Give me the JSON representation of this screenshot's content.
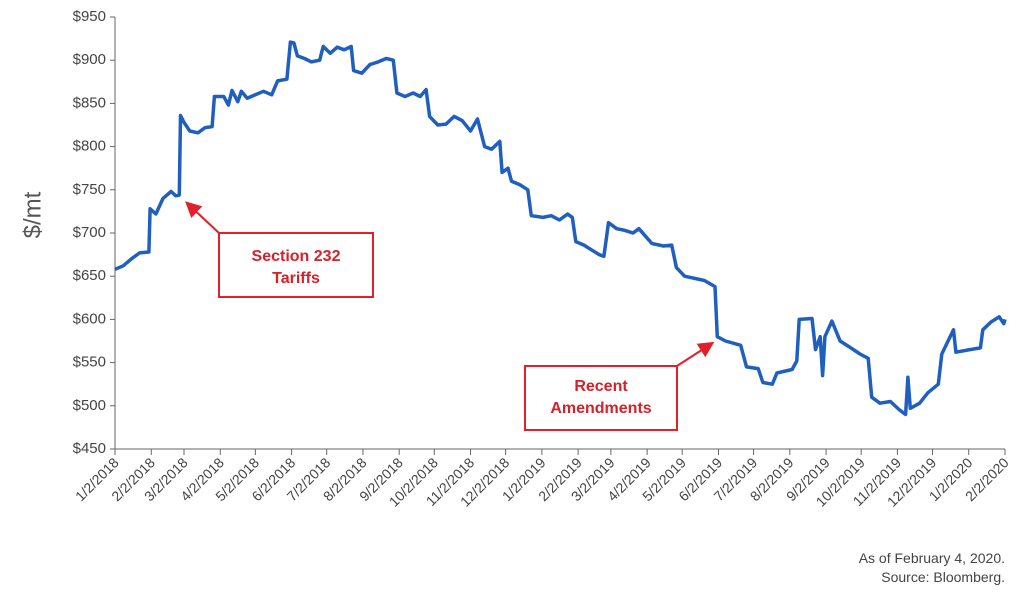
{
  "chart_data": {
    "type": "line",
    "y_label": "$/mt",
    "xlim": [
      "1/2/2018",
      "2/2/2020"
    ],
    "xticks": [
      "1/2/2018",
      "2/2/2018",
      "3/2/2018",
      "4/2/2018",
      "5/2/2018",
      "6/2/2018",
      "7/2/2018",
      "8/2/2018",
      "9/2/2018",
      "10/2/2018",
      "11/2/2018",
      "12/2/2018",
      "1/2/2019",
      "2/2/2019",
      "3/2/2019",
      "4/2/2019",
      "5/2/2019",
      "6/2/2019",
      "7/2/2019",
      "8/2/2019",
      "9/2/2019",
      "10/2/2019",
      "11/2/2019",
      "12/2/2019",
      "1/2/2020",
      "2/2/2020"
    ],
    "ylim": [
      450,
      950
    ],
    "yticks": [
      {
        "value": 450,
        "label": "$450"
      },
      {
        "value": 500,
        "label": "$500"
      },
      {
        "value": 550,
        "label": "$550"
      },
      {
        "value": 600,
        "label": "$600"
      },
      {
        "value": 650,
        "label": "$650"
      },
      {
        "value": 700,
        "label": "$700"
      },
      {
        "value": 750,
        "label": "$750"
      },
      {
        "value": 800,
        "label": "$800"
      },
      {
        "value": 850,
        "label": "$850"
      },
      {
        "value": 900,
        "label": "$900"
      },
      {
        "value": 950,
        "label": "$950"
      }
    ],
    "x": [
      "1/2/2018",
      "1/9/2018",
      "1/16/2018",
      "1/23/2018",
      "1/31/2018",
      "2/1/2018",
      "2/6/2018",
      "2/12/2018",
      "2/19/2018",
      "2/23/2018",
      "2/26/2018",
      "2/27/2018",
      "3/2/2018",
      "3/7/2018",
      "3/14/2018",
      "3/20/2018",
      "3/26/2018",
      "3/28/2018",
      "4/5/2018",
      "4/9/2018",
      "4/12/2018",
      "4/17/2018",
      "4/20/2018",
      "4/25/2018",
      "5/2/2018",
      "5/9/2018",
      "5/16/2018",
      "5/21/2018",
      "5/29/2018",
      "6/1/2018",
      "6/4/2018",
      "6/7/2018",
      "6/13/2018",
      "6/19/2018",
      "6/26/2018",
      "6/29/2018",
      "7/5/2018",
      "7/11/2018",
      "7/17/2018",
      "7/23/2018",
      "7/25/2018",
      "8/1/2018",
      "8/8/2018",
      "8/15/2018",
      "8/22/2018",
      "8/28/2018",
      "8/31/2018",
      "9/7/2018",
      "9/14/2018",
      "9/20/2018",
      "9/25/2018",
      "9/28/2018",
      "10/5/2018",
      "10/12/2018",
      "10/19/2018",
      "10/26/2018",
      "11/2/2018",
      "11/8/2018",
      "11/14/2018",
      "11/20/2018",
      "11/27/2018",
      "11/29/2018",
      "12/4/2018",
      "12/7/2018",
      "12/14/2018",
      "12/21/2018",
      "12/24/2018",
      "1/3/2019",
      "1/10/2019",
      "1/17/2019",
      "1/24/2019",
      "1/28/2019",
      "1/31/2019",
      "2/7/2019",
      "2/14/2019",
      "2/20/2019",
      "2/24/2019",
      "2/28/2019",
      "3/7/2019",
      "3/14/2019",
      "3/21/2019",
      "3/26/2019",
      "4/6/2019",
      "4/16/2019",
      "4/23/2019",
      "4/27/2019",
      "5/4/2019",
      "5/21/2019",
      "5/30/2019",
      "6/1/2019",
      "6/8/2019",
      "6/21/2019",
      "6/26/2019",
      "7/6/2019",
      "7/10/2019",
      "7/18/2019",
      "7/22/2019",
      "8/4/2019",
      "8/8/2019",
      "8/10/2019",
      "8/21/2019",
      "8/24/2019",
      "8/28/2019",
      "8/30/2019",
      "9/1/2019",
      "9/7/2019",
      "9/14/2019",
      "9/22/2019",
      "10/1/2019",
      "10/8/2019",
      "10/11/2019",
      "10/18/2019",
      "10/27/2019",
      "11/4/2019",
      "11/9/2019",
      "11/11/2019",
      "11/13/2019",
      "11/21/2019",
      "11/28/2019",
      "12/7/2019",
      "12/10/2019",
      "12/20/2019",
      "12/22/2019",
      "1/3/2020",
      "1/12/2020",
      "1/14/2020",
      "1/21/2020",
      "1/28/2020",
      "2/1/2020",
      "2/2/2020"
    ],
    "series": [
      {
        "color": "#1f5fbf",
        "values": [
          658,
          662,
          670,
          677,
          678,
          728,
          722,
          740,
          748,
          743,
          744,
          836,
          828,
          818,
          816,
          822,
          823,
          858,
          858,
          848,
          865,
          852,
          864,
          856,
          860,
          864,
          860,
          876,
          878,
          921,
          920,
          905,
          902,
          898,
          900,
          916,
          908,
          915,
          912,
          916,
          888,
          885,
          895,
          898,
          902,
          900,
          862,
          858,
          862,
          858,
          866,
          835,
          825,
          826,
          835,
          830,
          818,
          832,
          800,
          797,
          806,
          770,
          775,
          760,
          756,
          750,
          720,
          718,
          720,
          715,
          722,
          718,
          690,
          686,
          680,
          675,
          673,
          712,
          705,
          703,
          700,
          705,
          688,
          685,
          686,
          660,
          650,
          645,
          638,
          580,
          575,
          570,
          545,
          543,
          527,
          525,
          538,
          542,
          552,
          600,
          601,
          565,
          580,
          535,
          580,
          598,
          575,
          568,
          560,
          555,
          510,
          503,
          505,
          495,
          490,
          533,
          497,
          503,
          515,
          525,
          560,
          588,
          562,
          565,
          567,
          588,
          597,
          603,
          595,
          600
        ]
      }
    ],
    "annotations": [
      {
        "lines": [
          "Section 232",
          "Tariffs"
        ]
      },
      {
        "lines": [
          "Recent",
          "Amendments"
        ]
      }
    ],
    "notes": [
      "As of February 4, 2020.",
      "Source: Bloomberg."
    ]
  }
}
